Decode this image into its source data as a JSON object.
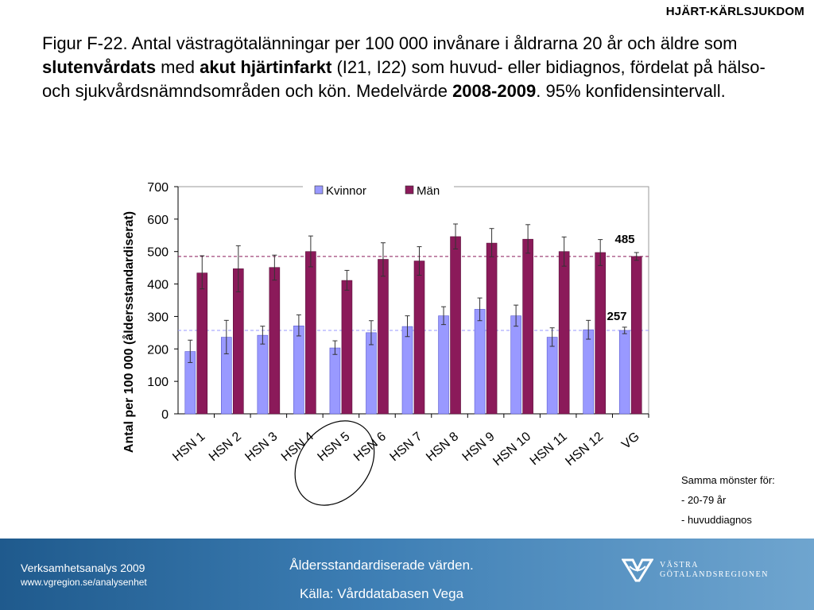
{
  "header_tag": "HJÄRT-KÄRLSJUKDOM",
  "title": {
    "p1": "Figur F-22. Antal västragötalänningar per 100 000 invånare i åldrarna 20 år och äldre som ",
    "b1": "slutenvårdats",
    "p2": " med ",
    "b2": "akut hjärtinfarkt",
    "p3": " (I21, I22) som huvud- eller bidiagnos, fördelat på hälso- och sjukvårdsnämndsområden och kön. Medelvärde ",
    "b3": "2008-2009",
    "p4": ". 95% konfidensintervall."
  },
  "chart_data": {
    "type": "bar",
    "ylabel": "Antal per 100 000 (åldersstandardiserat)",
    "ylim": [
      0,
      700
    ],
    "yticks": [
      0,
      100,
      200,
      300,
      400,
      500,
      600,
      700
    ],
    "categories": [
      "HSN 1",
      "HSN 2",
      "HSN 3",
      "HSN 4",
      "HSN 5",
      "HSN 6",
      "HSN 7",
      "HSN 8",
      "HSN 9",
      "HSN 10",
      "HSN 11",
      "HSN 12",
      "VG"
    ],
    "series": [
      {
        "name": "Kvinnor",
        "color": "#9999ff",
        "values": [
          192,
          236,
          242,
          271,
          203,
          250,
          269,
          302,
          322,
          302,
          236,
          259,
          257
        ],
        "ci_low": [
          158,
          185,
          215,
          240,
          183,
          213,
          238,
          275,
          287,
          270,
          208,
          230,
          247
        ],
        "ci_high": [
          227,
          288,
          270,
          305,
          225,
          287,
          302,
          330,
          357,
          335,
          265,
          288,
          267
        ]
      },
      {
        "name": "Män",
        "color": "#8b1a5a",
        "values": [
          434,
          447,
          451,
          500,
          411,
          476,
          471,
          546,
          526,
          538,
          500,
          497,
          485
        ],
        "ci_low": [
          385,
          376,
          412,
          453,
          381,
          424,
          427,
          508,
          484,
          495,
          455,
          457,
          473
        ],
        "ci_high": [
          487,
          518,
          489,
          548,
          442,
          527,
          515,
          585,
          571,
          583,
          545,
          537,
          497
        ]
      }
    ],
    "reference_lines": [
      {
        "value": 485,
        "label": "485",
        "color": "#8b1a5a"
      },
      {
        "value": 257,
        "label": "257",
        "color": "#9999ff"
      }
    ],
    "highlight_category": "HSN 5",
    "legend_position": "top-center",
    "grid": false
  },
  "side_note": [
    "Samma mönster för:",
    "- 20-79 år",
    "- huvuddiagnos"
  ],
  "footer": {
    "left_line1": "Verksamhetsanalys 2009",
    "left_line2": "www.vgregion.se/analysenhet",
    "center_line1": "Åldersstandardiserade värden.",
    "center_line2": "Källa: Vårddatabasen Vega",
    "logo_line1": "VÄSTRA",
    "logo_line2": "GÖTALANDSREGIONEN"
  }
}
